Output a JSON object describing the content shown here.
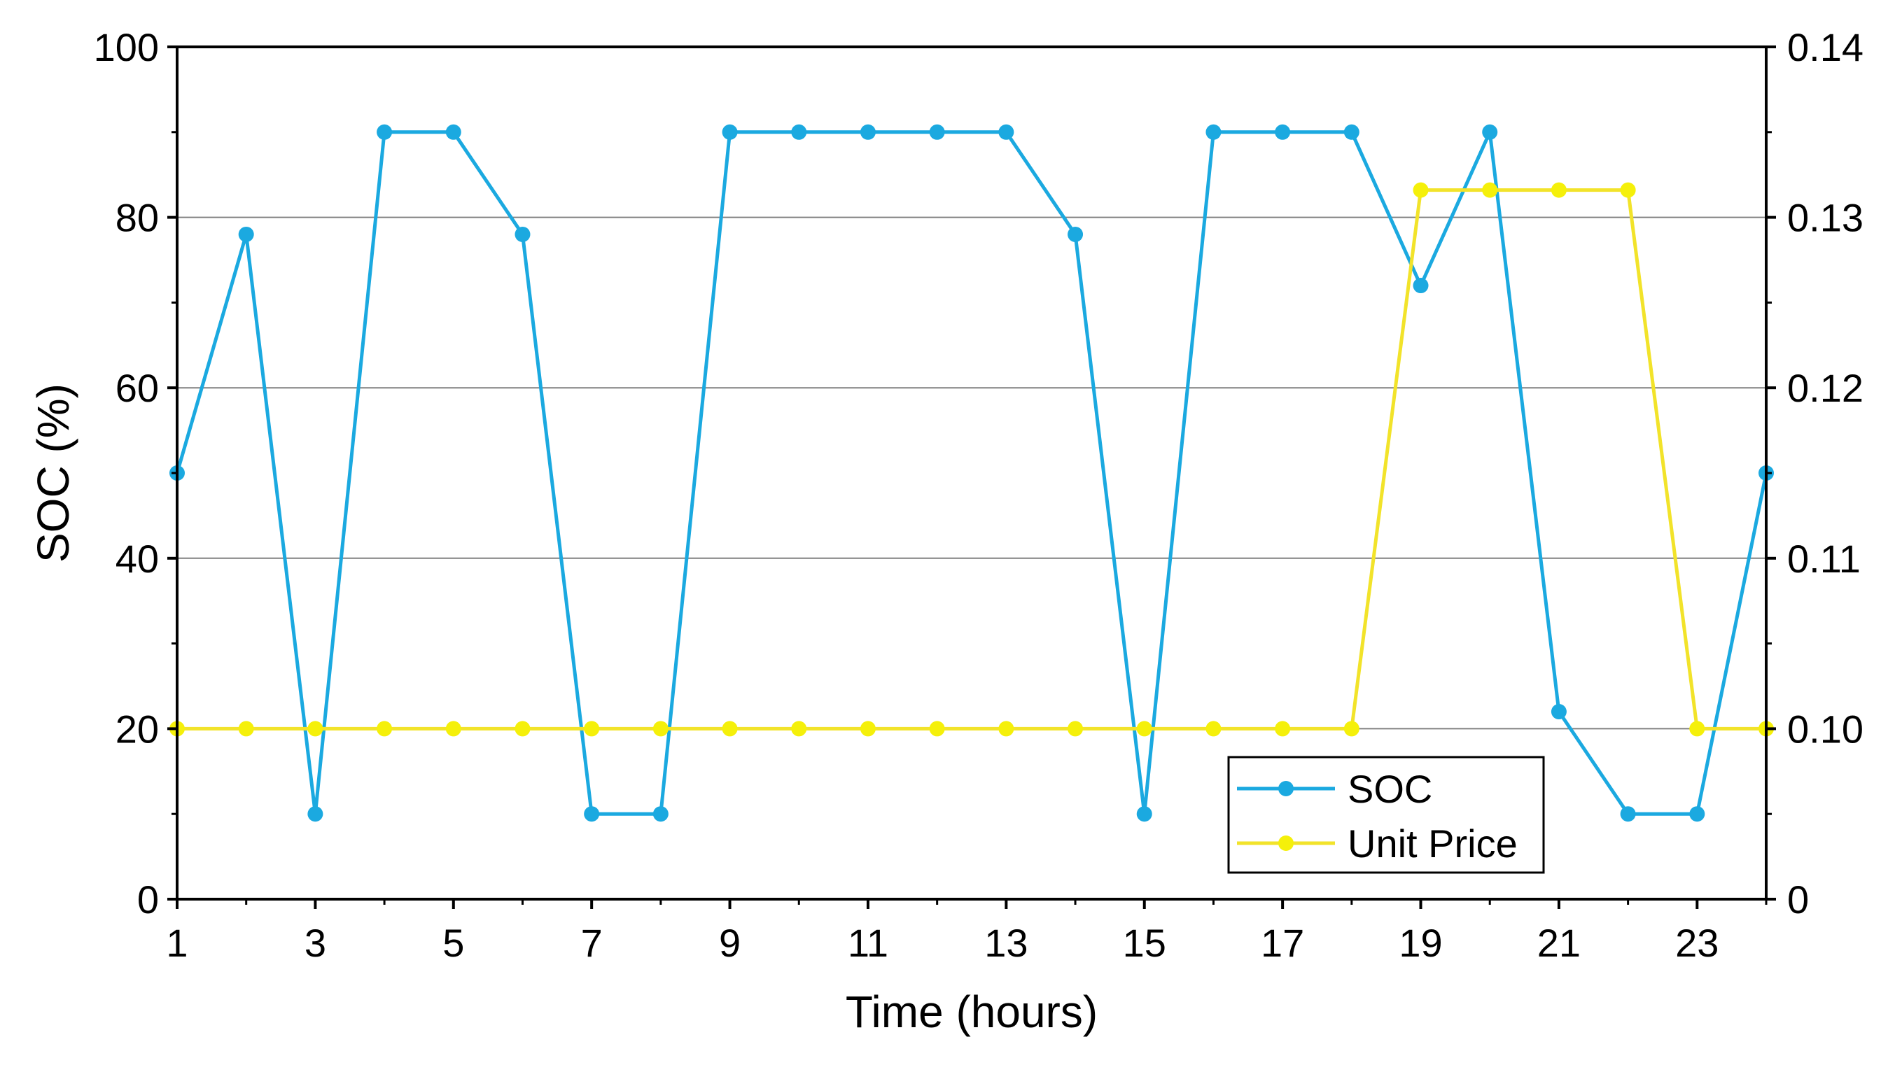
{
  "chart_data": {
    "type": "line",
    "title": "",
    "xlabel": "Time (hours)",
    "ylabel_left": "SOC (%)",
    "ylabel_right": "",
    "x": [
      1,
      2,
      3,
      4,
      5,
      6,
      7,
      8,
      9,
      10,
      11,
      12,
      13,
      14,
      15,
      16,
      17,
      18,
      19,
      20,
      21,
      22,
      23,
      24
    ],
    "xlim": [
      1,
      24
    ],
    "x_ticks": [
      "1",
      "3",
      "5",
      "7",
      "9",
      "11",
      "13",
      "15",
      "17",
      "19",
      "21",
      "23"
    ],
    "ylim_left": [
      0,
      100
    ],
    "y_ticks_left": [
      "0",
      "20",
      "40",
      "60",
      "80",
      "100"
    ],
    "ylim_right": [
      0,
      0.14
    ],
    "y_ticks_right": [
      "0",
      "0.10",
      "0.11",
      "0.12",
      "0.13",
      "0.14"
    ],
    "right_axis_break": "between 0 and 0.10 (0.10 aligns with left 20)",
    "grid": "horizontal",
    "legend_position": "bottom-right",
    "series": [
      {
        "name": "SOC",
        "axis": "left",
        "color": "#1BA9E0",
        "values": [
          50,
          78,
          10,
          90,
          90,
          78,
          10,
          10,
          90,
          90,
          90,
          90,
          90,
          78,
          10,
          90,
          90,
          90,
          72,
          90,
          22,
          10,
          10,
          50
        ]
      },
      {
        "name": "Unit Price",
        "axis": "right",
        "color": "#F2E32A",
        "values": [
          0.1,
          0.1,
          0.1,
          0.1,
          0.1,
          0.1,
          0.1,
          0.1,
          0.1,
          0.1,
          0.1,
          0.1,
          0.1,
          0.1,
          0.1,
          0.1,
          0.1,
          0.1,
          0.1316,
          0.1316,
          0.1316,
          0.1316,
          0.1,
          0.1
        ]
      }
    ],
    "marker_colors": {
      "SOC": "#1BA9E0",
      "Unit Price": "#F5F00A"
    }
  }
}
